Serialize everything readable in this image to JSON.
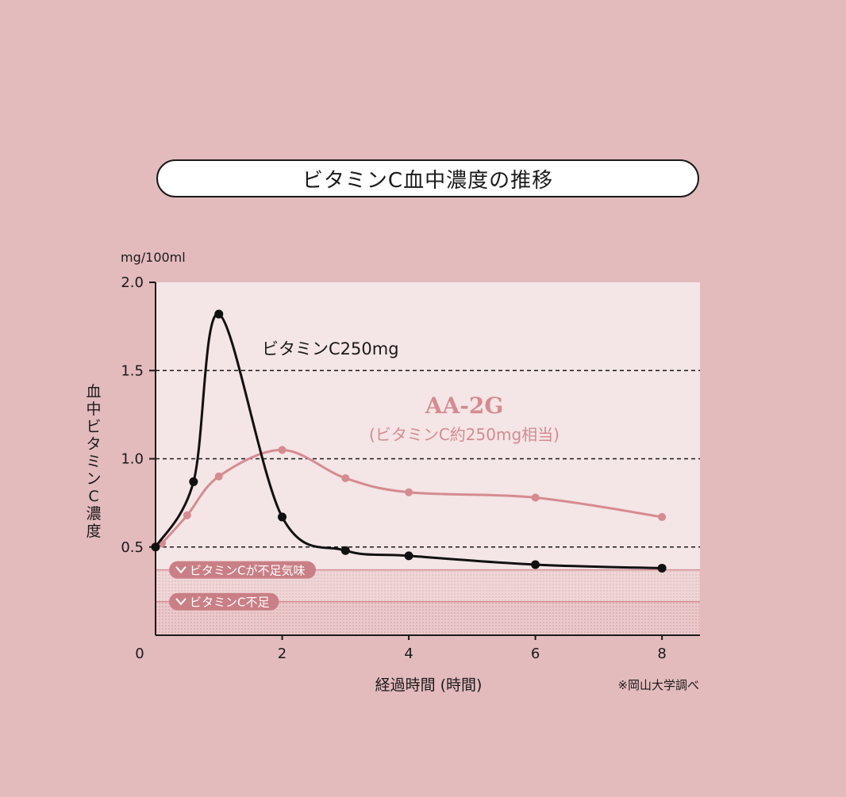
{
  "title": "ビタミンC血中濃度の推移",
  "chart_data": {
    "type": "line",
    "xlabel": "経過時間 (時間)",
    "ylabel": "血中ビタミンC濃度",
    "yunit": "mg/100ml",
    "xlim": [
      0,
      8.6
    ],
    "ylim": [
      0,
      2.0
    ],
    "x_ticks": [
      "0",
      "2",
      "4",
      "6",
      "8"
    ],
    "y_ticks": [
      "0.5",
      "1.0",
      "1.5",
      "2.0"
    ],
    "gridlines": [
      0.5,
      1.0,
      1.5
    ],
    "thresholds": [
      {
        "label": "ビタミンCが不足気味",
        "y": 0.37
      },
      {
        "label": "ビタミンC不足",
        "y": 0.19
      }
    ],
    "series": [
      {
        "name": "ビタミンC250mg",
        "color": "#111111",
        "x": [
          0,
          0.6,
          1.0,
          2.0,
          3.0,
          4.0,
          6.0,
          8.0
        ],
        "y": [
          0.5,
          0.87,
          1.82,
          0.67,
          0.48,
          0.45,
          0.4,
          0.38
        ]
      },
      {
        "name": "AA-2G",
        "subname": "(ビタミンC約250mg相当)",
        "color": "#d58b90",
        "x": [
          0.1,
          0.5,
          1.0,
          2.0,
          3.0,
          4.0,
          6.0,
          8.0
        ],
        "y": [
          0.52,
          0.68,
          0.9,
          1.05,
          0.89,
          0.81,
          0.78,
          0.67
        ]
      }
    ],
    "source": "※岡山大学調べ"
  }
}
